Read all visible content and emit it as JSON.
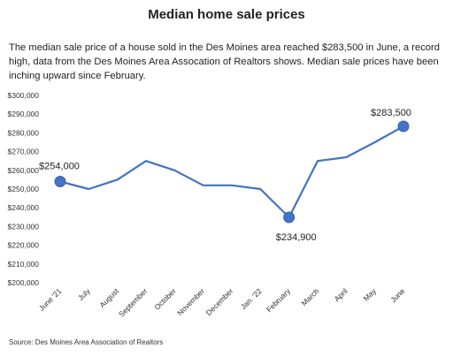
{
  "title": "Median home sale prices",
  "description": "The median sale price of a house sold in the Des Moines area reached $283,500 in June, a record high, data from the Des Moines Area Assocation of Realtors shows. Median sale prices have been inching upward since February.",
  "source": "Source: Des Moines Area Association of  Realtors",
  "colors": {
    "line": "#4472C4",
    "marker": "#4472C4",
    "text": "#222222"
  },
  "chart_data": {
    "type": "line",
    "title": "Median home sale prices",
    "xlabel": "",
    "ylabel": "",
    "categories": [
      "June '21",
      "July",
      "August",
      "September",
      "October",
      "November",
      "December",
      "Jan. '22",
      "February",
      "March",
      "April",
      "May",
      "June"
    ],
    "series": [
      {
        "values": [
          254000,
          250000,
          255000,
          265000,
          260000,
          252000,
          252000,
          250000,
          234900,
          265000,
          267000,
          275000,
          283500
        ]
      }
    ],
    "ylim": [
      200000,
      300000
    ],
    "yticks": [
      "$200,000",
      "$210,000",
      "$220,000",
      "$230,000",
      "$240,000",
      "$250,000",
      "$260,000",
      "$270,000",
      "$280,000",
      "$290,000",
      "$300,000"
    ],
    "ytick_values": [
      200000,
      210000,
      220000,
      230000,
      240000,
      250000,
      260000,
      270000,
      280000,
      290000,
      300000
    ],
    "grid": false,
    "legend": "none",
    "annotations": [
      {
        "index": 0,
        "label": "$254,000"
      },
      {
        "index": 8,
        "label": "$234,900"
      },
      {
        "index": 12,
        "label": "$283,500"
      }
    ]
  }
}
